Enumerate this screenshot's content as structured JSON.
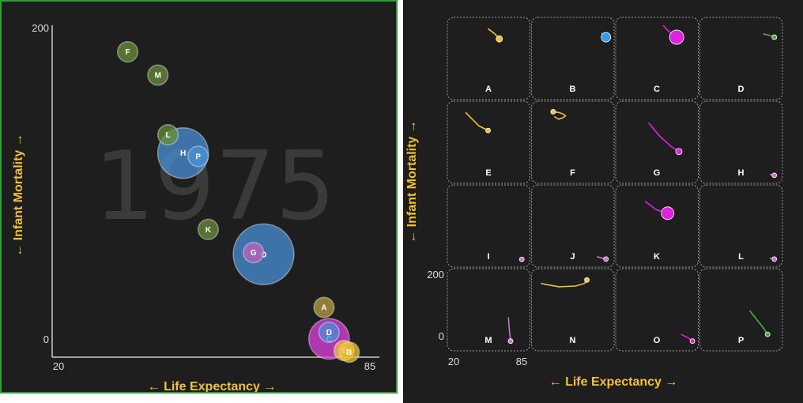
{
  "chart_data": [
    {
      "type": "scatter",
      "subtype": "bubble",
      "year": "1975",
      "xlabel": "← Life Expectancy →",
      "ylabel": "← Infant Mortality →",
      "xlim": [
        20,
        85
      ],
      "ylim": [
        0,
        200
      ],
      "x_ticks": [
        "20",
        "85"
      ],
      "y_ticks": [
        "200",
        "0"
      ],
      "colors": {
        "F": "#6a8f3a",
        "M": "#6a8f3a",
        "L": "#6a8f3a",
        "K": "#6a8f3a",
        "H": "#4a90d9",
        "P": "#4a90d9",
        "G": "#c060c0",
        "O": "#4a90d9",
        "A": "#b8a040",
        "D": "#4a90d9",
        "C": "#e040e0",
        "E": "#f2c232",
        "B": "#f2c232"
      },
      "points": [
        {
          "label": "F",
          "x": 35,
          "y": 184,
          "size": 4
        },
        {
          "label": "M",
          "x": 41,
          "y": 170,
          "size": 4
        },
        {
          "label": "L",
          "x": 43,
          "y": 134,
          "size": 4
        },
        {
          "label": "H",
          "x": 46,
          "y": 123,
          "size": 10
        },
        {
          "label": "P",
          "x": 49,
          "y": 121,
          "size": 4
        },
        {
          "label": "K",
          "x": 51,
          "y": 77,
          "size": 4
        },
        {
          "label": "G",
          "x": 60,
          "y": 63,
          "size": 4
        },
        {
          "label": "O",
          "x": 62,
          "y": 62,
          "size": 12
        },
        {
          "label": "A",
          "x": 74,
          "y": 30,
          "size": 4
        },
        {
          "label": "D",
          "x": 75,
          "y": 15,
          "size": 4
        },
        {
          "label": "C",
          "x": 75,
          "y": 11,
          "size": 8
        },
        {
          "label": "E",
          "x": 78,
          "y": 4,
          "size": 4
        },
        {
          "label": "B",
          "x": 79,
          "y": 3,
          "size": 4
        }
      ]
    },
    {
      "type": "line",
      "subtype": "small-multiples",
      "xlabel": "← Life Expectancy →",
      "ylabel": "← Infant Mortality →",
      "xlim": [
        20,
        85
      ],
      "ylim": [
        0,
        200
      ],
      "x_ticks": [
        "20",
        "85"
      ],
      "y_ticks": [
        "200",
        "0"
      ],
      "panels": [
        {
          "label": "A",
          "color": "#f2c232",
          "size": 4,
          "trail": [
            [
              52,
              190
            ],
            [
              58,
              175
            ],
            [
              62,
              160
            ]
          ]
        },
        {
          "label": "B",
          "color": "#2e9cf0",
          "size": 6,
          "trail": [
            [
              78,
              178
            ],
            [
              82,
              165
            ]
          ]
        },
        {
          "label": "C",
          "color": "#e020e0",
          "size": 9,
          "trail": [
            [
              58,
              200
            ],
            [
              62,
              185
            ],
            [
              70,
              165
            ]
          ]
        },
        {
          "label": "D",
          "color": "#4caa40",
          "size": 3,
          "trail": [
            [
              72,
              175
            ],
            [
              78,
              170
            ],
            [
              82,
              165
            ]
          ]
        },
        {
          "label": "E",
          "color": "#f2c232",
          "size": 3,
          "trail": [
            [
              32,
              190
            ],
            [
              38,
              170
            ],
            [
              44,
              150
            ],
            [
              52,
              137
            ]
          ]
        },
        {
          "label": "F",
          "color": "#f2c232",
          "size": 3,
          "trail": [
            [
              36,
              178
            ],
            [
              40,
              170
            ],
            [
              44,
              175
            ],
            [
              46,
              180
            ],
            [
              44,
              185
            ],
            [
              40,
              190
            ],
            [
              35,
              192
            ]
          ]
        },
        {
          "label": "G",
          "color": "#e020e0",
          "size": 4,
          "trail": [
            [
              45,
              160
            ],
            [
              55,
              120
            ],
            [
              65,
              90
            ],
            [
              72,
              75
            ]
          ]
        },
        {
          "label": "H",
          "color": "#d070d0",
          "size": 3,
          "trail": [
            [
              78,
              8
            ],
            [
              82,
              5
            ]
          ]
        },
        {
          "label": "I",
          "color": "#d070d0",
          "size": 3,
          "trail": [
            [
              80,
              6
            ],
            [
              82,
              4
            ]
          ]
        },
        {
          "label": "J",
          "color": "#d070d0",
          "size": 3,
          "trail": [
            [
              74,
              12
            ],
            [
              82,
              5
            ]
          ]
        },
        {
          "label": "K",
          "color": "#e020e0",
          "size": 8,
          "trail": [
            [
              42,
              175
            ],
            [
              52,
              150
            ],
            [
              62,
              140
            ]
          ]
        },
        {
          "label": "L",
          "color": "#d070d0",
          "size": 3,
          "trail": [
            [
              78,
              8
            ],
            [
              82,
              5
            ]
          ]
        },
        {
          "label": "M",
          "color": "#d070d0",
          "size": 3,
          "trail": [
            [
              70,
              80
            ],
            [
              71,
              40
            ],
            [
              72,
              10
            ]
          ]
        },
        {
          "label": "N",
          "color": "#f2c232",
          "size": 3,
          "trail": [
            [
              24,
              180
            ],
            [
              30,
              176
            ],
            [
              40,
              170
            ],
            [
              55,
              172
            ],
            [
              63,
              180
            ],
            [
              65,
              190
            ]
          ]
        },
        {
          "label": "O",
          "color": "#e020e0",
          "size": 3,
          "trail": [
            [
              74,
              30
            ],
            [
              80,
              20
            ],
            [
              84,
              10
            ]
          ]
        },
        {
          "label": "P",
          "color": "#4caa40",
          "size": 3,
          "trail": [
            [
              60,
              100
            ],
            [
              66,
              75
            ],
            [
              72,
              50
            ],
            [
              76,
              30
            ]
          ]
        }
      ]
    }
  ]
}
